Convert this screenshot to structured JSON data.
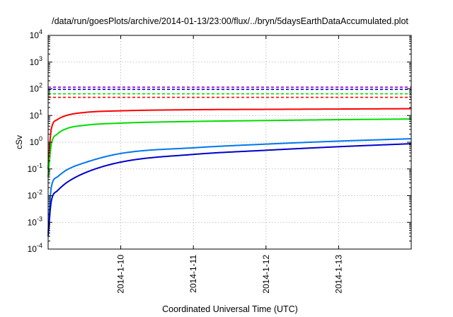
{
  "chart_data": {
    "type": "line",
    "title": "/data/run/goesPlots/archive/2014-01-13/23:00/flux/../bryn/5daysEarthDataAccumulated.plot",
    "xlabel": "Coordinated Universal Time (UTC)",
    "ylabel": "cSv",
    "y_scale": "log",
    "ylim": [
      0.0001,
      10000
    ],
    "xlim": [
      "2014-01-09T00:00",
      "2014-01-14T00:00"
    ],
    "x_ticks": [
      "2014-1-10",
      "2014-1-11",
      "2014-1-12",
      "2014-1-13"
    ],
    "y_ticks": [
      {
        "base": "10",
        "exp": "-4"
      },
      {
        "base": "10",
        "exp": "-3"
      },
      {
        "base": "10",
        "exp": "-2"
      },
      {
        "base": "10",
        "exp": "-1"
      },
      {
        "base": "10",
        "exp": "0"
      },
      {
        "base": "10",
        "exp": "1"
      },
      {
        "base": "10",
        "exp": "2"
      },
      {
        "base": "10",
        "exp": "3"
      },
      {
        "base": "10",
        "exp": "4"
      }
    ],
    "grid": true,
    "series": [
      {
        "color": "#ff0000",
        "style": "solid",
        "x": [
          "2014-01-09T00:00",
          "2014-01-09T01:00",
          "2014-01-09T03:00",
          "2014-01-09T06:00",
          "2014-01-09T12:00",
          "2014-01-10T00:00",
          "2014-01-11T00:00",
          "2014-01-12T00:00",
          "2014-01-13T00:00",
          "2014-01-14T00:00"
        ],
        "y": [
          0.1,
          3,
          7,
          10,
          13,
          15,
          16.5,
          17,
          17.5,
          18
        ]
      },
      {
        "color": "#00dd00",
        "style": "solid",
        "x": [
          "2014-01-09T00:00",
          "2014-01-09T01:00",
          "2014-01-09T03:00",
          "2014-01-09T06:00",
          "2014-01-09T12:00",
          "2014-01-10T00:00",
          "2014-01-11T00:00",
          "2014-01-12T00:00",
          "2014-01-13T00:00",
          "2014-01-14T00:00"
        ],
        "y": [
          0.05,
          0.8,
          2,
          3.2,
          4.3,
          5.2,
          6,
          6.5,
          7,
          7.4
        ]
      },
      {
        "color": "#0077ee",
        "style": "solid",
        "x": [
          "2014-01-09T00:00",
          "2014-01-09T01:00",
          "2014-01-09T03:00",
          "2014-01-09T06:00",
          "2014-01-09T12:00",
          "2014-01-10T00:00",
          "2014-01-11T00:00",
          "2014-01-12T00:00",
          "2014-01-13T00:00",
          "2014-01-14T00:00"
        ],
        "y": [
          0.0004,
          0.02,
          0.05,
          0.09,
          0.17,
          0.38,
          0.62,
          0.85,
          1.1,
          1.35
        ]
      },
      {
        "color": "#0000cc",
        "style": "solid",
        "x": [
          "2014-01-09T00:00",
          "2014-01-09T01:00",
          "2014-01-09T03:00",
          "2014-01-09T06:00",
          "2014-01-09T12:00",
          "2014-01-10T00:00",
          "2014-01-11T00:00",
          "2014-01-12T00:00",
          "2014-01-13T00:00",
          "2014-01-14T00:00"
        ],
        "y": [
          0.0003,
          0.006,
          0.015,
          0.03,
          0.07,
          0.18,
          0.35,
          0.5,
          0.68,
          0.88
        ]
      },
      {
        "color": "#9900cc",
        "style": "dashed",
        "x": [
          "2014-01-09T00:00",
          "2014-01-14T00:00"
        ],
        "y": [
          115,
          115
        ]
      },
      {
        "color": "#0000cc",
        "style": "dashed",
        "x": [
          "2014-01-09T00:00",
          "2014-01-14T00:00"
        ],
        "y": [
          95,
          95
        ]
      },
      {
        "color": "#00dd00",
        "style": "dashed",
        "x": [
          "2014-01-09T00:00",
          "2014-01-14T00:00"
        ],
        "y": [
          65,
          65
        ]
      },
      {
        "color": "#ff0000",
        "style": "dashed",
        "x": [
          "2014-01-09T00:00",
          "2014-01-14T00:00"
        ],
        "y": [
          48,
          48
        ]
      }
    ]
  }
}
